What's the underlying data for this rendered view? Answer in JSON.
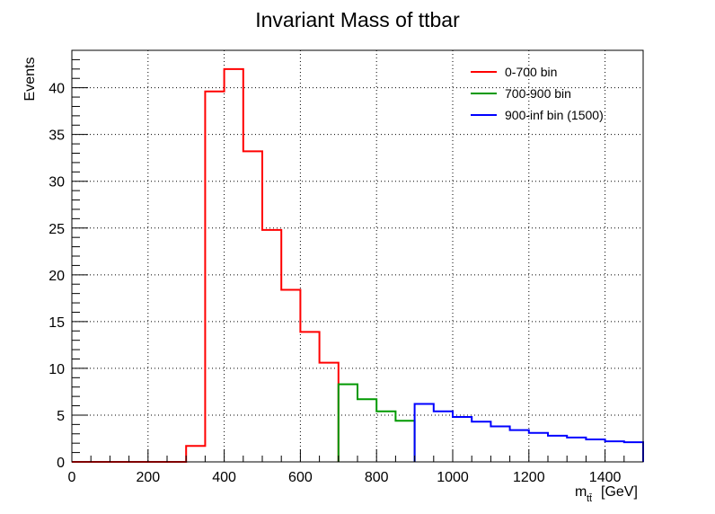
{
  "chart_data": {
    "type": "histogram",
    "title": "Invariant Mass of ttbar",
    "xlabel": "m_tt̄ [GeV]",
    "xlabel_main": "m",
    "xlabel_sub": "tt̄",
    "xlabel_unit": "[GeV]",
    "ylabel": "Events",
    "xlim": [
      0,
      1500
    ],
    "ylim": [
      0,
      44
    ],
    "x_ticks": [
      0,
      200,
      400,
      600,
      800,
      1000,
      1200,
      1400
    ],
    "y_ticks": [
      0,
      5,
      10,
      15,
      20,
      25,
      30,
      35,
      40
    ],
    "grid": true,
    "legend_position": "top-right",
    "series": [
      {
        "name": "0-700 bin",
        "color": "#ff0000",
        "bin_edges": [
          0,
          50,
          100,
          150,
          200,
          250,
          300,
          350,
          400,
          450,
          500,
          550,
          600,
          650,
          700
        ],
        "values": [
          0,
          0,
          0,
          0,
          0,
          0,
          1.7,
          39.6,
          42.0,
          33.2,
          24.8,
          18.4,
          13.9,
          10.6
        ]
      },
      {
        "name": "700-900 bin",
        "color": "#009900",
        "bin_edges": [
          700,
          750,
          800,
          850,
          900
        ],
        "values": [
          8.3,
          6.7,
          5.4,
          4.4
        ]
      },
      {
        "name": "900-inf bin (1500)",
        "color": "#0000ff",
        "bin_edges": [
          900,
          950,
          1000,
          1050,
          1100,
          1150,
          1200,
          1250,
          1300,
          1350,
          1400,
          1450,
          1500
        ],
        "values": [
          6.2,
          5.4,
          4.8,
          4.3,
          3.8,
          3.4,
          3.1,
          2.8,
          2.6,
          2.4,
          2.2,
          2.1
        ]
      }
    ]
  }
}
